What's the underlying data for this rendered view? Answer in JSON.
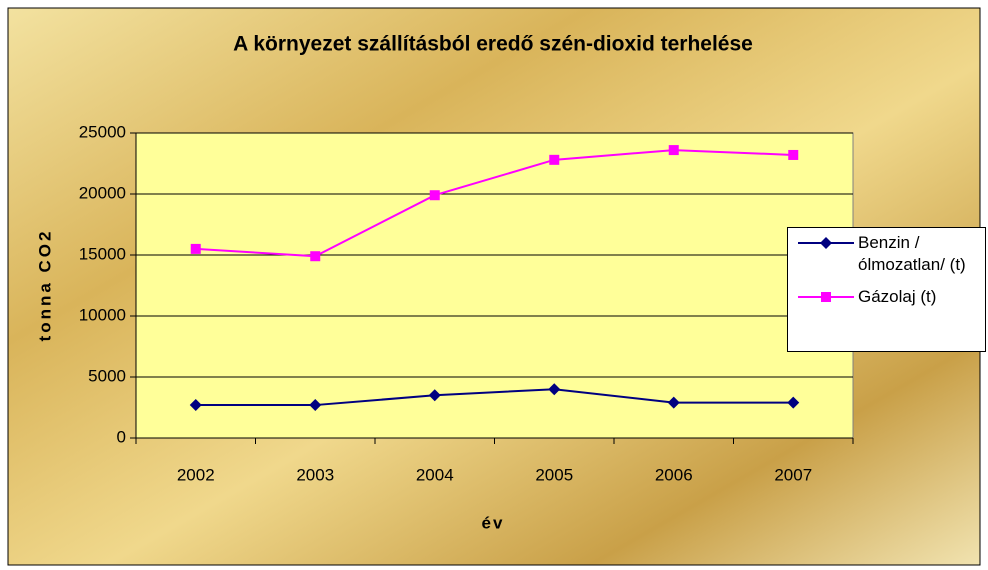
{
  "chart_data": {
    "type": "line",
    "title": "A környezet szállításból eredő szén-dioxid terhelése",
    "x_label": "év",
    "y_label": "tonna CO2",
    "categories": [
      "2002",
      "2003",
      "2004",
      "2005",
      "2006",
      "2007"
    ],
    "series": [
      {
        "name": "Benzin /ólmozatlan/ (t)",
        "color": "#000080",
        "marker": "diamond",
        "values": [
          2700,
          2700,
          3500,
          4000,
          2900,
          2900
        ]
      },
      {
        "name": "Gázolaj (t)",
        "color": "#ff00ff",
        "marker": "square",
        "values": [
          15500,
          14900,
          19900,
          22800,
          23600,
          23200
        ]
      }
    ],
    "ylim": [
      0,
      25000
    ],
    "yticks": [
      0,
      5000,
      10000,
      15000,
      20000,
      25000
    ],
    "grid": true,
    "legend": "right"
  }
}
